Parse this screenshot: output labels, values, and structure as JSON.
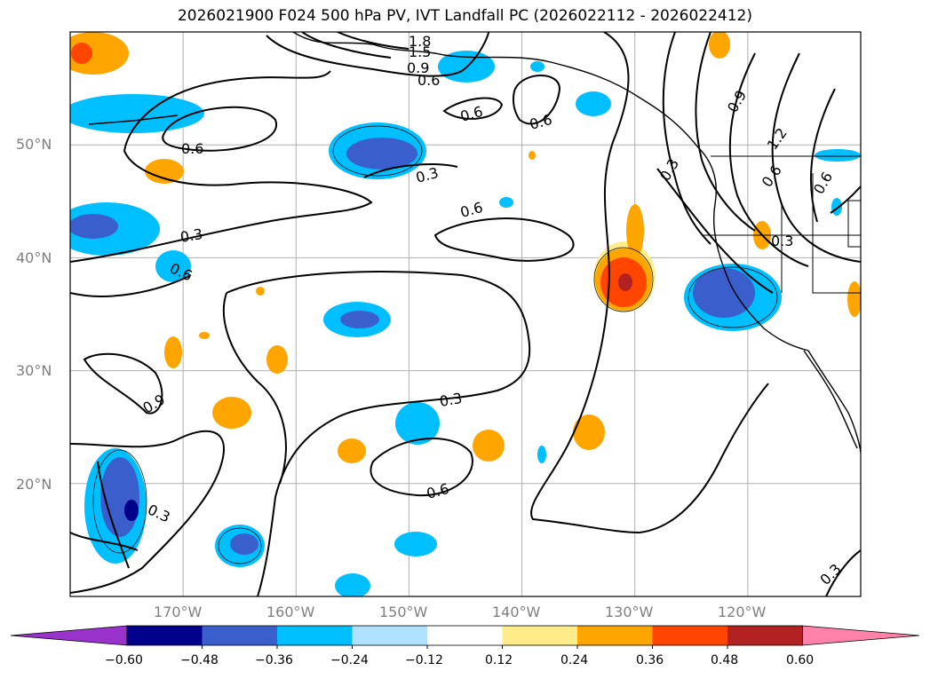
{
  "title": "2026021900 F024 500 hPa PV, IVT Landfall PC (2026022112 - 2026022412)",
  "map": {
    "projection": "plate carree",
    "lon_range": [
      -180,
      -110
    ],
    "lat_range": [
      10,
      60
    ],
    "gridlines": true,
    "lat_labels": [
      "50°N",
      "40°N",
      "30°N",
      "20°N"
    ],
    "lon_labels": [
      "170°W",
      "160°W",
      "150°W",
      "140°W",
      "130°W",
      "120°W"
    ]
  },
  "contour_labels": [
    "1.8",
    "1.5",
    "0.9",
    "0.6",
    "0.6",
    "0.6",
    "0.6",
    "0.3",
    "0.6",
    "0.3",
    "0.6",
    "0.9",
    "0.3",
    "0.6",
    "0.3",
    "0.9",
    "0.3",
    "1.2",
    "0.6",
    "0.6",
    "0.3",
    "0.3"
  ],
  "colorbar": {
    "ticks": [
      "−0.60",
      "−0.48",
      "−0.36",
      "−0.24",
      "−0.12",
      "0.12",
      "0.24",
      "0.36",
      "0.48",
      "0.60"
    ],
    "colors": [
      "#9933cc",
      "#00008b",
      "#3a5fcd",
      "#00bfff",
      "#b0e2ff",
      "#ffffff",
      "#ffec8b",
      "#ffa500",
      "#ff4500",
      "#b22222",
      "#ff82ab"
    ],
    "extend": "both"
  },
  "fill_colors": {
    "neg_light": "#b0e2ff",
    "neg_mid": "#00bfff",
    "neg_strong": "#3a5fcd",
    "neg_max": "#00008b",
    "pos_light": "#ffec8b",
    "pos_mid": "#ffa500",
    "pos_strong": "#ff4500",
    "pos_max": "#b22222"
  }
}
